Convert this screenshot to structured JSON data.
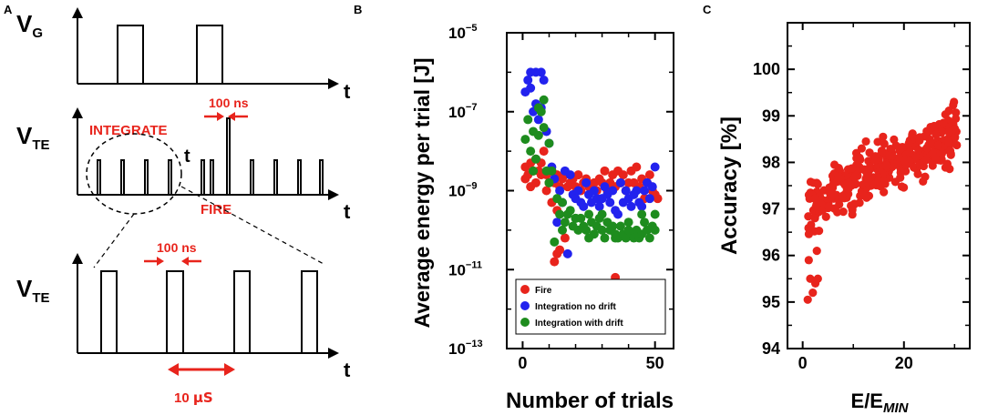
{
  "colors": {
    "red": "#e8241c",
    "blue": "#2222ee",
    "green": "#1e8c1e",
    "black": "#000000"
  },
  "panel_a": {
    "label": "A",
    "vg_label": "V",
    "vg_sub": "G",
    "vte_label": "V",
    "vte_sub": "TE",
    "t_label": "t",
    "integrate": "INTEGRATE",
    "fire": "FIRE",
    "pulse_width": "100 ns",
    "period_prefix": "10 ",
    "period_unit": "µS"
  },
  "chart_data": [
    {
      "panel": "B",
      "type": "scatter",
      "title": "",
      "xlabel": "Number of trials",
      "ylabel": "Average energy per trial [J]",
      "xlim": [
        -6,
        57
      ],
      "x_ticks": [
        0,
        50
      ],
      "yscale": "log",
      "ylim_exp": [
        -13,
        -5
      ],
      "y_ticks": [
        {
          "exp": -5,
          "base": "10",
          "sup": "−5"
        },
        {
          "exp": -7,
          "base": "10",
          "sup": "−7"
        },
        {
          "exp": -9,
          "base": "10",
          "sup": "−9"
        },
        {
          "exp": -11,
          "base": "10",
          "sup": "−11"
        },
        {
          "exp": -13,
          "base": "10",
          "sup": "−13"
        }
      ],
      "legend_position": "bottom-right",
      "series": [
        {
          "name": "Fire",
          "color": "#e8241c",
          "x": [
            1,
            2,
            3,
            4,
            5,
            6,
            7,
            8,
            9,
            10,
            11,
            12,
            13,
            14,
            15,
            16,
            17,
            18,
            19,
            20,
            21,
            22,
            23,
            24,
            25,
            26,
            27,
            28,
            29,
            30,
            31,
            32,
            33,
            34,
            35,
            36,
            37,
            38,
            39,
            40,
            41,
            42,
            43,
            44,
            45,
            46,
            47,
            48,
            49,
            50,
            51,
            1,
            3,
            5,
            7,
            9,
            11,
            13,
            35,
            12,
            13,
            14,
            16
          ],
          "log10_y": [
            -8.4,
            -8.6,
            -8.3,
            -8.5,
            -8.2,
            -8.5,
            -8.3,
            -8.0,
            -8.6,
            -8.8,
            -8.5,
            -8.8,
            -8.6,
            -8.9,
            -8.7,
            -8.6,
            -8.9,
            -8.8,
            -8.7,
            -8.9,
            -8.6,
            -9.0,
            -8.8,
            -8.7,
            -8.9,
            -9.0,
            -8.8,
            -9.0,
            -8.7,
            -8.8,
            -8.5,
            -9.0,
            -8.8,
            -8.6,
            -8.9,
            -8.5,
            -8.8,
            -8.6,
            -9.0,
            -8.8,
            -8.5,
            -8.8,
            -8.4,
            -8.9,
            -8.7,
            -9.2,
            -8.8,
            -8.6,
            -9.0,
            -9.1,
            -9.2,
            -8.7,
            -8.9,
            -8.8,
            -8.6,
            -9.0,
            -9.3,
            -9.5,
            -11.2,
            -10.8,
            -10.6,
            -10.5,
            -10.2
          ]
        },
        {
          "name": "Integration no drift",
          "color": "#2222ee",
          "x": [
            1,
            2,
            3,
            4,
            5,
            6,
            7,
            8,
            9,
            10,
            11,
            12,
            14,
            16,
            18,
            19,
            20,
            21,
            22,
            23,
            24,
            25,
            26,
            27,
            28,
            29,
            30,
            31,
            32,
            33,
            34,
            35,
            36,
            37,
            38,
            39,
            40,
            41,
            42,
            43,
            44,
            45,
            46,
            47,
            48,
            49,
            50,
            17,
            15,
            13,
            3,
            5,
            7
          ],
          "log10_y": [
            -6.5,
            -6.2,
            -6.4,
            -7.0,
            -6.8,
            -7.2,
            -6.9,
            -6.2,
            -7.5,
            -7.8,
            -8.4,
            -8.7,
            -9.0,
            -8.5,
            -8.6,
            -9.1,
            -9.2,
            -9.0,
            -9.3,
            -9.4,
            -8.8,
            -9.1,
            -9.3,
            -9.0,
            -9.2,
            -9.4,
            -9.2,
            -8.9,
            -9.1,
            -9.3,
            -9.0,
            -9.5,
            -9.6,
            -8.8,
            -9.3,
            -9.0,
            -9.2,
            -9.4,
            -9.1,
            -9.0,
            -9.3,
            -9.4,
            -9.0,
            -8.8,
            -9.2,
            -8.9,
            -8.4,
            -10.6,
            -9.3,
            -9.8,
            -6.0,
            -6.0,
            -6.0
          ]
        },
        {
          "name": "Integration with drift",
          "color": "#1e8c1e",
          "x": [
            1,
            2,
            3,
            4,
            5,
            6,
            7,
            8,
            9,
            10,
            11,
            12,
            13,
            14,
            15,
            16,
            17,
            18,
            19,
            20,
            21,
            22,
            23,
            24,
            25,
            26,
            27,
            28,
            29,
            30,
            31,
            32,
            33,
            34,
            35,
            36,
            37,
            38,
            39,
            40,
            41,
            42,
            43,
            44,
            45,
            46,
            47,
            48,
            49,
            50,
            4,
            6,
            8,
            10,
            15,
            20,
            25,
            30,
            35,
            40,
            45,
            50
          ],
          "log10_y": [
            -7.7,
            -7.2,
            -8.0,
            -7.5,
            -8.2,
            -7.6,
            -7.0,
            -6.7,
            -8.5,
            -7.8,
            -8.5,
            -10.3,
            -9.2,
            -9.6,
            -9.3,
            -9.8,
            -9.6,
            -9.5,
            -9.9,
            -9.7,
            -10.0,
            -9.7,
            -9.9,
            -10.0,
            -9.6,
            -9.8,
            -10.1,
            -9.9,
            -9.7,
            -10.0,
            -10.2,
            -9.8,
            -10.0,
            -9.9,
            -10.1,
            -10.2,
            -9.9,
            -10.1,
            -10.2,
            -9.8,
            -10.1,
            -10.2,
            -10.0,
            -10.2,
            -10.1,
            -9.8,
            -10.0,
            -10.2,
            -9.9,
            -10.0,
            -8.5,
            -6.9,
            -7.4,
            -8.8,
            -10.0,
            -9.7,
            -10.2,
            -9.6,
            -10.2,
            -10.0,
            -9.6,
            -9.6
          ]
        }
      ]
    },
    {
      "panel": "C",
      "type": "scatter",
      "title": "",
      "xlabel_main": "E/E",
      "xlabel_sub": "MIN",
      "ylabel": "Accuracy [%]",
      "xlim": [
        -3,
        33
      ],
      "ylim": [
        94,
        101
      ],
      "x_ticks": [
        0,
        20
      ],
      "y_ticks": [
        94,
        95,
        96,
        97,
        98,
        99,
        100
      ],
      "series": [
        {
          "name": "Accuracy",
          "color": "#e8241c",
          "x": [],
          "y": []
        }
      ]
    }
  ]
}
